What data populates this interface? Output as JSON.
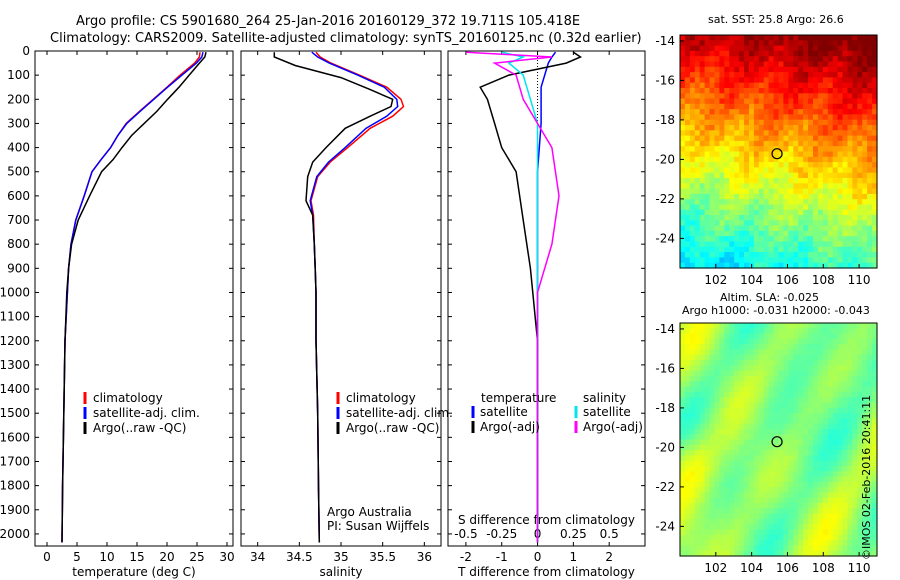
{
  "titles": {
    "line1": "Argo profile: CS 5901680_264 25-Jan-2016 20160129_372 19.711S 105.418E",
    "line2": "Climatology: CARS2009. Satellite-adjusted climatology: synTS_20160125.nc (0.32d earlier)"
  },
  "colors": {
    "climatology": "#ff0000",
    "satellite": "#0000ff",
    "argo": "#000000",
    "sat_salinity": "#00e5ee",
    "argo_salinity": "#ff00ff"
  },
  "chart_data": [
    {
      "type": "line",
      "xlabel": "temperature (deg C)",
      "ylabel": "",
      "xlim": [
        -2,
        31
      ],
      "ylim": [
        2050,
        0
      ],
      "xticks": [
        0,
        5,
        10,
        15,
        20,
        25,
        30
      ],
      "yticks": [
        0,
        100,
        200,
        300,
        400,
        500,
        600,
        700,
        800,
        900,
        1000,
        1100,
        1200,
        1300,
        1400,
        1500,
        1600,
        1700,
        1800,
        1900,
        2000
      ],
      "legend": [
        "climatology",
        "satellite-adj. clim.",
        "Argo(..raw -QC)"
      ],
      "series": [
        {
          "name": "climatology",
          "x": [
            25.5,
            25.4,
            24.6,
            22.2,
            20.0,
            17.7,
            15.4,
            13.2,
            11.8,
            10.6,
            9.0,
            7.5,
            6.2,
            4.8,
            4.0,
            3.6,
            3.4,
            3.0,
            2.8,
            2.6,
            2.5
          ],
          "y": [
            5,
            25,
            50,
            100,
            150,
            200,
            250,
            300,
            350,
            400,
            450,
            500,
            600,
            700,
            800,
            900,
            1000,
            1200,
            1500,
            1800,
            2035
          ]
        },
        {
          "name": "satellite-adj. clim.",
          "x": [
            26.0,
            25.8,
            24.9,
            22.5,
            20.1,
            17.8,
            15.5,
            13.3,
            11.8,
            10.6,
            9.0,
            7.5,
            6.2,
            4.8,
            4.0,
            3.6,
            3.4,
            3.0,
            2.8,
            2.6,
            2.5
          ],
          "y": [
            5,
            25,
            50,
            100,
            150,
            200,
            250,
            300,
            350,
            400,
            450,
            500,
            600,
            700,
            800,
            900,
            1000,
            1200,
            1500,
            1800,
            2035
          ]
        },
        {
          "name": "Argo(..raw -QC)",
          "x": [
            26.5,
            26.3,
            25.4,
            23.7,
            22.0,
            20.1,
            18.3,
            16.2,
            14.1,
            12.5,
            11.0,
            9.1,
            7.1,
            5.2,
            4.1,
            3.6,
            3.3,
            3.0,
            2.8,
            2.6,
            2.5
          ],
          "y": [
            5,
            25,
            50,
            100,
            150,
            200,
            250,
            300,
            350,
            400,
            450,
            500,
            600,
            700,
            800,
            900,
            1000,
            1200,
            1500,
            1800,
            2035
          ]
        }
      ]
    },
    {
      "type": "line",
      "xlabel": "salinity",
      "xlim": [
        33.8,
        36.2
      ],
      "ylim": [
        2050,
        0
      ],
      "xticks": [
        34,
        34.5,
        35,
        35.5,
        36
      ],
      "xticklabels": [
        "34",
        "34.5",
        "35",
        "35.5",
        "36"
      ],
      "legend": [
        "climatology",
        "satellite-adj. clim.",
        "Argo(..raw -QC)"
      ],
      "annotation": [
        "Argo Australia",
        "PI: Susan Wijffels"
      ],
      "series": [
        {
          "name": "climatology",
          "x": [
            34.7,
            34.75,
            34.88,
            35.22,
            35.55,
            35.72,
            35.75,
            35.62,
            35.35,
            35.08,
            34.87,
            34.72,
            34.64,
            34.67,
            34.68,
            34.69,
            34.7,
            34.7,
            34.72,
            34.73,
            34.74
          ],
          "y": [
            5,
            25,
            50,
            100,
            150,
            200,
            230,
            270,
            320,
            400,
            460,
            520,
            620,
            680,
            800,
            900,
            1000,
            1200,
            1500,
            1800,
            2035
          ]
        },
        {
          "name": "satellite-adj. clim.",
          "x": [
            34.65,
            34.72,
            34.86,
            35.2,
            35.52,
            35.67,
            35.68,
            35.55,
            35.3,
            35.05,
            34.85,
            34.71,
            34.63,
            34.66,
            34.68,
            34.69,
            34.7,
            34.7,
            34.72,
            34.73,
            34.74
          ],
          "y": [
            5,
            25,
            50,
            100,
            150,
            200,
            230,
            270,
            320,
            400,
            460,
            520,
            620,
            680,
            800,
            900,
            1000,
            1200,
            1500,
            1800,
            2035
          ]
        },
        {
          "name": "Argo(..raw -QC)",
          "x": [
            34.2,
            34.2,
            34.45,
            35.0,
            35.35,
            35.62,
            35.6,
            35.35,
            35.05,
            34.82,
            34.66,
            34.6,
            34.58,
            34.66,
            34.68,
            34.69,
            34.7,
            34.7,
            34.72,
            34.73,
            34.74
          ],
          "y": [
            5,
            25,
            60,
            110,
            160,
            200,
            230,
            270,
            320,
            400,
            460,
            520,
            620,
            680,
            800,
            900,
            1000,
            1200,
            1500,
            1800,
            2035
          ]
        }
      ]
    },
    {
      "type": "line",
      "xlabel": "T difference from climatology",
      "xlabel2": "S difference from climatology",
      "xlim": [
        -2.5,
        3
      ],
      "ylim": [
        2050,
        0
      ],
      "xticks": [
        -2,
        -1,
        0,
        1,
        2
      ],
      "xticks2": [
        -0.5,
        -0.25,
        0,
        0.25,
        0.5
      ],
      "legend_groups": [
        "temperature",
        "salinity"
      ],
      "legend": [
        "satellite",
        "Argo(-adj)",
        "satellite",
        "Argo(-adj)"
      ],
      "series": [
        {
          "name": "temperature satellite",
          "x": [
            0.5,
            0.4,
            0.3,
            0.2,
            0.1,
            0.1,
            0.1,
            0.05,
            0.0,
            0.0,
            0.0,
            0.0,
            0.0,
            0.0
          ],
          "y": [
            5,
            25,
            50,
            100,
            150,
            200,
            300,
            400,
            500,
            700,
            1000,
            1400,
            1800,
            2035
          ]
        },
        {
          "name": "temperature Argo(-adj)",
          "x": [
            1.0,
            1.2,
            0.8,
            -0.8,
            -1.6,
            -1.4,
            -1.2,
            -1.0,
            -0.6,
            -0.4,
            -0.2,
            0.0,
            0.0,
            0.0
          ],
          "y": [
            5,
            25,
            50,
            100,
            150,
            200,
            300,
            400,
            500,
            700,
            900,
            1200,
            1600,
            2035
          ]
        },
        {
          "name": "salinity satellite",
          "x": [
            -0.25,
            -0.1,
            -0.2,
            -0.1,
            -0.05,
            0.0,
            0.0,
            0.0,
            0.0,
            0.0,
            0.0,
            0.0
          ],
          "y": [
            5,
            25,
            50,
            100,
            200,
            300,
            400,
            600,
            800,
            1000,
            1400,
            2035
          ]
        },
        {
          "name": "salinity Argo(-adj)",
          "x": [
            -0.5,
            0.1,
            -0.3,
            -0.15,
            -0.1,
            0.0,
            0.1,
            0.15,
            0.1,
            0.0,
            0.0,
            0.0
          ],
          "y": [
            5,
            25,
            50,
            100,
            200,
            300,
            400,
            600,
            800,
            1000,
            1400,
            2035
          ]
        }
      ]
    },
    {
      "type": "heatmap",
      "title": "sat. SST: 25.8 Argo: 26.6",
      "xlim": [
        100,
        111
      ],
      "ylim": [
        -25.5,
        -13.7
      ],
      "xticks": [
        102,
        104,
        106,
        108,
        110
      ],
      "yticks": [
        -14,
        -16,
        -18,
        -20,
        -22,
        -24
      ],
      "marker": {
        "x": 105.418,
        "y": -19.711
      }
    },
    {
      "type": "heatmap",
      "title": "Altim. SLA: -0.025",
      "subtitle": "Argo h1000: -0.031 h2000: -0.043",
      "xlim": [
        100,
        111
      ],
      "ylim": [
        -25.5,
        -13.7
      ],
      "xticks": [
        102,
        104,
        106,
        108,
        110
      ],
      "yticks": [
        -14,
        -16,
        -18,
        -20,
        -22,
        -24
      ],
      "marker": {
        "x": 105.418,
        "y": -19.711
      }
    }
  ],
  "footer": "©IMOS 02-Feb-2016 20:41:11"
}
